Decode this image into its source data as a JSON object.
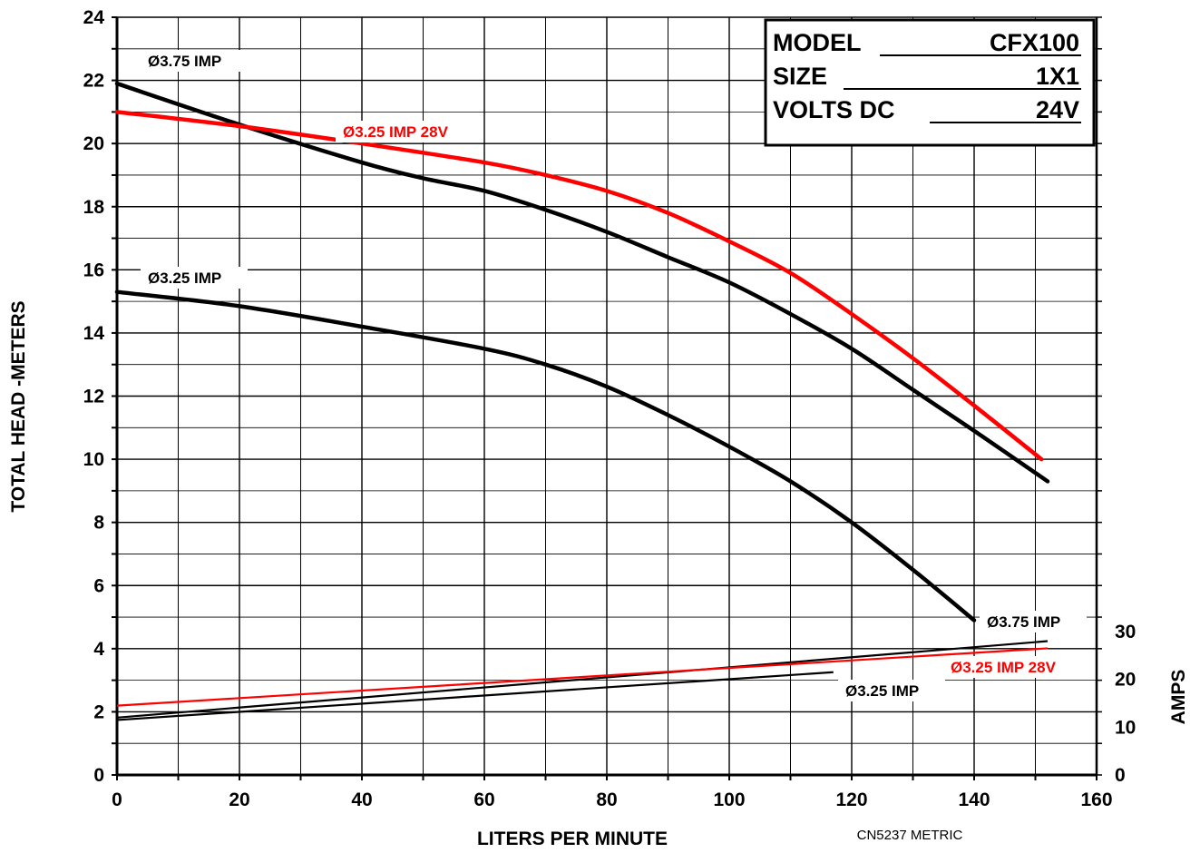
{
  "chart_data": {
    "type": "line",
    "xlabel": "LITERS PER MINUTE",
    "ylabel": "TOTAL HEAD -METERS",
    "y2label": "AMPS",
    "xlim": [
      0,
      160
    ],
    "ylim": [
      0,
      24
    ],
    "y2lim": [
      0,
      30
    ],
    "xticks": [
      "0",
      "20",
      "40",
      "60",
      "80",
      "100",
      "120",
      "140",
      "160"
    ],
    "yticks": [
      "0",
      "2",
      "4",
      "6",
      "8",
      "10",
      "12",
      "14",
      "16",
      "18",
      "20",
      "22",
      "24"
    ],
    "y2ticks": [
      "0",
      "10",
      "20",
      "30"
    ],
    "grid": true,
    "info_box": {
      "model_label": "MODEL",
      "model_value": "CFX100",
      "size_label": "SIZE",
      "size_value": "1X1",
      "volts_label": "VOLTS DC",
      "volts_value": "24V"
    },
    "footnote": "CN5237 METRIC",
    "colors": {
      "black": "#000000",
      "red": "#ff0000"
    },
    "head_curves": [
      {
        "label": "Ø3.75 IMP",
        "color": "#000000",
        "x": [
          0,
          20,
          40,
          50,
          60,
          70,
          80,
          90,
          100,
          110,
          120,
          130,
          140,
          152
        ],
        "y": [
          21.9,
          20.6,
          19.4,
          18.9,
          18.5,
          17.9,
          17.2,
          16.4,
          15.6,
          14.6,
          13.5,
          12.2,
          10.9,
          9.3
        ]
      },
      {
        "label": "Ø3.25 IMP 28V",
        "color": "#ff0000",
        "x": [
          0,
          20,
          40,
          60,
          70,
          80,
          90,
          100,
          110,
          120,
          130,
          140,
          151
        ],
        "y": [
          21.0,
          20.55,
          20.0,
          19.4,
          19.0,
          18.5,
          17.8,
          16.9,
          15.9,
          14.6,
          13.2,
          11.7,
          10.0
        ]
      },
      {
        "label": "Ø3.25 IMP",
        "color": "#000000",
        "x": [
          0,
          20,
          40,
          60,
          70,
          80,
          90,
          100,
          110,
          120,
          130,
          140
        ],
        "y": [
          15.3,
          14.85,
          14.2,
          13.5,
          13.0,
          12.3,
          11.4,
          10.4,
          9.3,
          8.0,
          6.5,
          4.9
        ]
      }
    ],
    "amp_curves": [
      {
        "label": "Ø3.75 IMP",
        "color": "#000000",
        "x": [
          0,
          152
        ],
        "y": [
          12,
          28
        ]
      },
      {
        "label": "Ø3.25 IMP 28V",
        "color": "#ff0000",
        "x": [
          0,
          152
        ],
        "y": [
          14.5,
          26.5
        ]
      },
      {
        "label": "Ø3.25 IMP",
        "color": "#000000",
        "x": [
          0,
          117
        ],
        "y": [
          11.5,
          21.5
        ]
      }
    ]
  }
}
